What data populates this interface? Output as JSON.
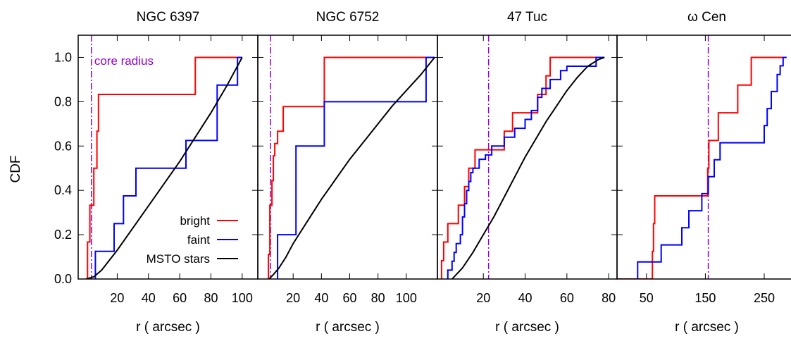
{
  "colors": {
    "bright": "#ff0000",
    "faint": "#0000ff",
    "msto": "#000000",
    "core_radius": "#9400d3"
  },
  "chart_data": [
    {
      "type": "line",
      "title": "NGC 6397",
      "xlabel": "r ( arcsec )",
      "ylabel": "CDF",
      "xlim": [
        -5,
        110
      ],
      "ylim": [
        0,
        1.1
      ],
      "xticks": [
        20,
        40,
        60,
        80,
        100
      ],
      "xticklabels": [
        "20",
        "40",
        "60",
        "80",
        "100"
      ],
      "yticks": [
        0,
        0.2,
        0.4,
        0.6,
        0.8,
        1.0
      ],
      "yticklabels": [
        "0.0",
        "0.2",
        "0.4",
        "0.6",
        "0.8",
        "1.0"
      ],
      "core_radius": 3.5,
      "annotation": "core radius",
      "legend": {
        "position": "bottom-right",
        "entries": [
          "bright",
          "faint",
          "MSTO stars"
        ]
      },
      "series": [
        {
          "name": "bright",
          "step": true,
          "x": [
            1,
            1,
            2.5,
            2.5,
            5,
            5,
            7,
            7,
            8,
            8,
            70,
            70,
            100
          ],
          "y": [
            0,
            0.167,
            0.167,
            0.333,
            0.333,
            0.5,
            0.5,
            0.667,
            0.667,
            0.833,
            0.833,
            1.0,
            1.0
          ]
        },
        {
          "name": "faint",
          "step": true,
          "x": [
            6,
            6,
            18,
            18,
            24,
            24,
            32,
            32,
            64,
            64,
            84,
            84,
            97,
            97,
            100
          ],
          "y": [
            0,
            0.125,
            0.125,
            0.25,
            0.25,
            0.375,
            0.375,
            0.5,
            0.5,
            0.625,
            0.625,
            0.875,
            0.875,
            1.0,
            1.0
          ]
        },
        {
          "name": "MSTO stars",
          "step": false,
          "x": [
            0,
            5,
            10,
            20,
            30,
            40,
            50,
            60,
            70,
            80,
            90,
            100
          ],
          "y": [
            0,
            0.01,
            0.04,
            0.13,
            0.23,
            0.33,
            0.43,
            0.53,
            0.64,
            0.75,
            0.87,
            1.0
          ]
        }
      ]
    },
    {
      "type": "line",
      "title": "NGC 6752",
      "xlabel": "r ( arcsec )",
      "ylabel": "",
      "xlim": [
        -5,
        122
      ],
      "ylim": [
        0,
        1.1
      ],
      "xticks": [
        20,
        40,
        60,
        80,
        100
      ],
      "xticklabels": [
        "20",
        "40",
        "60",
        "80",
        "100"
      ],
      "yticks": [
        0,
        0.2,
        0.4,
        0.6,
        0.8,
        1.0
      ],
      "yticklabels": [],
      "core_radius": 4.0,
      "series": [
        {
          "name": "bright",
          "step": true,
          "x": [
            2.5,
            2.5,
            3.5,
            3.5,
            5,
            5,
            6,
            6,
            7,
            7,
            9,
            9,
            13,
            13,
            42,
            42,
            120
          ],
          "y": [
            0,
            0.111,
            0.111,
            0.333,
            0.333,
            0.444,
            0.444,
            0.556,
            0.556,
            0.611,
            0.611,
            0.667,
            0.667,
            0.778,
            0.778,
            1.0,
            1.0
          ]
        },
        {
          "name": "faint",
          "step": true,
          "x": [
            9,
            9,
            22,
            22,
            42,
            42,
            114,
            114,
            120
          ],
          "y": [
            0,
            0.2,
            0.2,
            0.6,
            0.6,
            0.8,
            0.8,
            1.0,
            1.0
          ]
        },
        {
          "name": "MSTO stars",
          "step": false,
          "x": [
            3,
            6,
            10,
            15,
            20,
            30,
            40,
            50,
            60,
            70,
            80,
            90,
            100,
            110,
            120
          ],
          "y": [
            0,
            0.02,
            0.05,
            0.1,
            0.16,
            0.26,
            0.36,
            0.45,
            0.54,
            0.62,
            0.7,
            0.78,
            0.85,
            0.92,
            1.0
          ]
        }
      ]
    },
    {
      "type": "line",
      "title": "47 Tuc",
      "xlabel": "r ( arcsec )",
      "ylabel": "",
      "xlim": [
        -2,
        84
      ],
      "ylim": [
        0,
        1.1
      ],
      "xticks": [
        20,
        40,
        60,
        80
      ],
      "xticklabels": [
        "20",
        "40",
        "60",
        "80"
      ],
      "yticks": [
        0,
        0.2,
        0.4,
        0.6,
        0.8,
        1.0
      ],
      "yticklabels": [],
      "core_radius": 22.5,
      "series": [
        {
          "name": "bright",
          "step": true,
          "x": [
            0,
            0,
            1,
            1,
            3,
            3,
            8,
            8,
            11,
            11,
            13,
            13,
            16,
            16,
            30,
            30,
            34,
            34,
            46,
            46,
            50,
            50,
            52,
            52,
            78
          ],
          "y": [
            0,
            0.083,
            0.083,
            0.167,
            0.167,
            0.25,
            0.25,
            0.333,
            0.333,
            0.417,
            0.417,
            0.5,
            0.5,
            0.583,
            0.583,
            0.667,
            0.667,
            0.75,
            0.75,
            0.833,
            0.833,
            0.917,
            0.917,
            1.0,
            1.0
          ]
        },
        {
          "name": "faint",
          "step": true,
          "x": [
            3,
            3,
            5,
            5,
            6,
            6,
            7,
            7,
            9,
            9,
            10,
            10,
            11,
            11,
            12,
            12,
            13,
            13,
            14,
            14,
            15,
            15,
            18,
            18,
            21,
            21,
            24,
            24,
            30,
            30,
            35,
            35,
            40,
            40,
            43,
            43,
            46,
            46,
            48,
            48,
            52,
            52,
            57,
            57,
            60,
            60,
            74,
            74,
            78
          ],
          "y": [
            0,
            0.04,
            0.04,
            0.08,
            0.08,
            0.12,
            0.12,
            0.16,
            0.16,
            0.2,
            0.2,
            0.28,
            0.28,
            0.34,
            0.34,
            0.4,
            0.4,
            0.44,
            0.44,
            0.48,
            0.48,
            0.5,
            0.5,
            0.54,
            0.54,
            0.56,
            0.56,
            0.6,
            0.6,
            0.64,
            0.64,
            0.68,
            0.68,
            0.72,
            0.72,
            0.76,
            0.76,
            0.82,
            0.82,
            0.86,
            0.86,
            0.9,
            0.9,
            0.94,
            0.94,
            0.96,
            0.96,
            1.0,
            1.0
          ]
        },
        {
          "name": "MSTO stars",
          "step": false,
          "x": [
            5,
            10,
            15,
            20,
            25,
            30,
            35,
            40,
            45,
            50,
            55,
            60,
            65,
            70,
            75,
            78
          ],
          "y": [
            0,
            0.05,
            0.12,
            0.2,
            0.28,
            0.37,
            0.46,
            0.55,
            0.63,
            0.71,
            0.78,
            0.85,
            0.91,
            0.96,
            0.99,
            1.0
          ]
        }
      ]
    },
    {
      "type": "line",
      "title": "ω Cen",
      "xlabel": "r ( arcsec )",
      "ylabel": "",
      "xlim": [
        0,
        305
      ],
      "ylim": [
        0,
        1.1
      ],
      "xticks": [
        50,
        150,
        250
      ],
      "xticklabels": [
        "50",
        "150",
        "250"
      ],
      "yticks": [
        0,
        0.2,
        0.4,
        0.6,
        0.8,
        1.0
      ],
      "yticklabels": [],
      "core_radius": 155,
      "series": [
        {
          "name": "bright",
          "step": true,
          "x": [
            0,
            60,
            60,
            62,
            62,
            64,
            64,
            154,
            154,
            156,
            156,
            172,
            172,
            205,
            205,
            228,
            228,
            278,
            278,
            285
          ],
          "y": [
            0,
            0,
            0.125,
            0.125,
            0.25,
            0.25,
            0.375,
            0.375,
            0.5,
            0.5,
            0.625,
            0.625,
            0.75,
            0.75,
            0.875,
            0.875,
            1.0,
            1.0,
            1.0,
            1.0
          ]
        },
        {
          "name": "faint",
          "step": true,
          "x": [
            35,
            35,
            75,
            75,
            110,
            110,
            122,
            122,
            144,
            144,
            155,
            155,
            165,
            165,
            175,
            175,
            250,
            250,
            255,
            255,
            262,
            262,
            272,
            272,
            277,
            277,
            282,
            282,
            288
          ],
          "y": [
            0,
            0.077,
            0.077,
            0.154,
            0.154,
            0.231,
            0.231,
            0.308,
            0.308,
            0.385,
            0.385,
            0.462,
            0.462,
            0.538,
            0.538,
            0.615,
            0.615,
            0.692,
            0.692,
            0.769,
            0.769,
            0.846,
            0.846,
            0.923,
            0.923,
            0.962,
            0.962,
            1.0,
            1.0
          ]
        }
      ]
    }
  ]
}
